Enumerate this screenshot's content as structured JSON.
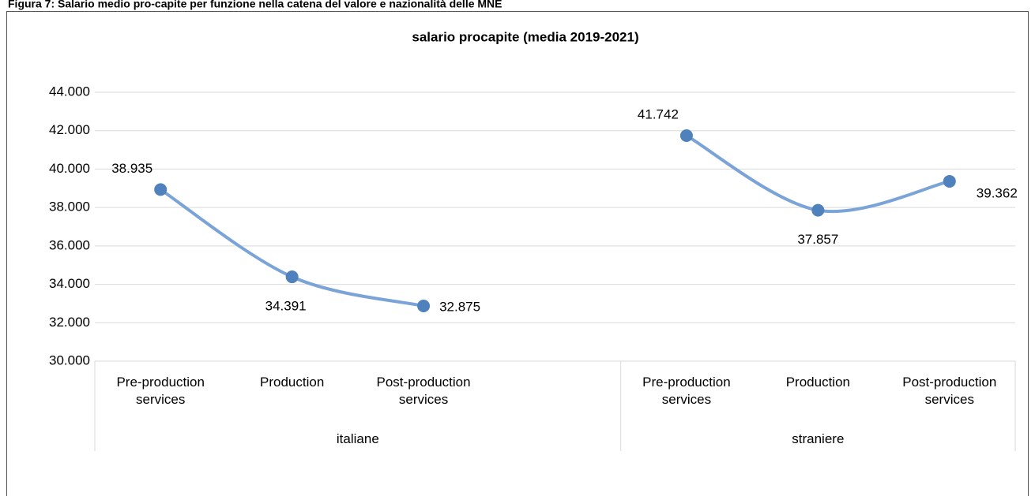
{
  "chart_data": {
    "type": "line",
    "figure_title": "Figura 7: Salario medio pro-capite per funzione nella catena del valore e nazionalità delle MNE",
    "title": "salario procapite (media 2019-2021)",
    "categories": [
      "Pre-production services",
      "Production",
      "Post-production services",
      null,
      "Pre-production services",
      "Production",
      "Post-production services"
    ],
    "groups": [
      "italiane",
      "straniere"
    ],
    "values": [
      38935,
      34391,
      32875,
      null,
      41742,
      37857,
      39362
    ],
    "value_labels": [
      "38.935",
      "34.391",
      "32.875",
      null,
      "41.742",
      "37.857",
      "39.362"
    ],
    "color": "#4f81bd",
    "line_color": "#7aa3d8",
    "ylim": [
      30000,
      44000
    ],
    "yticks": [
      {
        "value": 30000,
        "label": "30.000"
      },
      {
        "value": 32000,
        "label": "32.000"
      },
      {
        "value": 34000,
        "label": "34.000"
      },
      {
        "value": 36000,
        "label": "36.000"
      },
      {
        "value": 38000,
        "label": "38.000"
      },
      {
        "value": 40000,
        "label": "40.000"
      },
      {
        "value": 42000,
        "label": "42.000"
      },
      {
        "value": 44000,
        "label": "44.000"
      }
    ],
    "grid": true
  }
}
